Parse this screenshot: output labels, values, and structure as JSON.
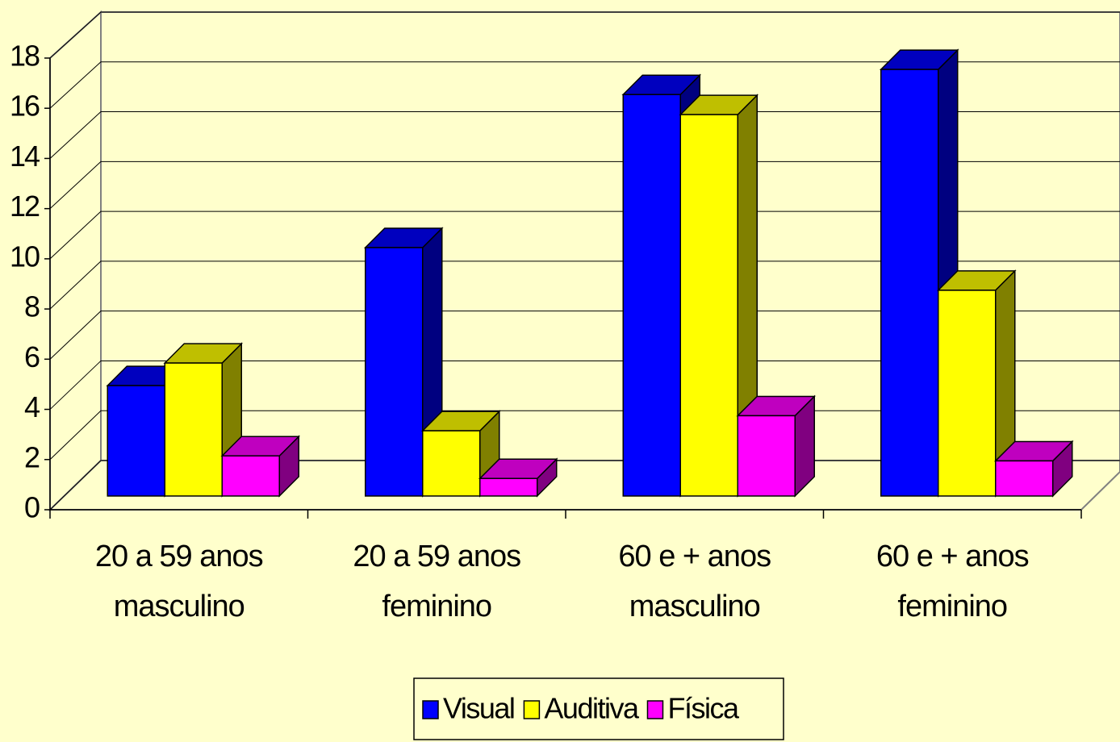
{
  "chart_data": {
    "type": "bar3d",
    "categories": [
      "20 a 59 anos\nmasculino",
      "20 a 59 anos\nfeminino",
      "60 e + anos\nmasculino",
      "60 e + anos\nfeminino"
    ],
    "series": [
      {
        "name": "Visual",
        "color": "#0000ff",
        "values": [
          4.4,
          9.9,
          16,
          17
        ]
      },
      {
        "name": "Auditiva",
        "color": "#ffff00",
        "values": [
          5.3,
          2.6,
          15.2,
          8.2
        ]
      },
      {
        "name": "Física",
        "color": "#ff00ff",
        "values": [
          1.6,
          0.7,
          3.2,
          1.4
        ]
      }
    ],
    "ylim": [
      0,
      18
    ],
    "yticks": [
      0,
      2,
      4,
      6,
      8,
      10,
      12,
      14,
      16,
      18
    ],
    "grid": true,
    "legend": "bottom"
  }
}
